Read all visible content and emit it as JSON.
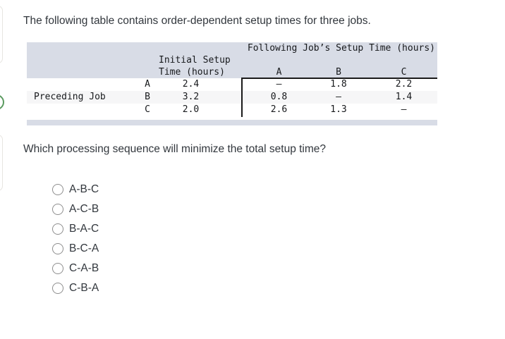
{
  "page": {
    "intro": "The following table contains order-dependent setup times for three jobs.",
    "question": "Which processing sequence will minimize the total setup time?"
  },
  "table": {
    "spanning_header": "Following Job’s Setup Time (hours)",
    "initial_col_header": [
      "Initial Setup",
      "Time (hours)"
    ],
    "following_cols": [
      "A",
      "B",
      "C"
    ],
    "row_group_label": "Preceding Job",
    "rows": [
      {
        "job": "A",
        "initial": "2.4",
        "A": "–",
        "B": "1.8",
        "C": "2.2"
      },
      {
        "job": "B",
        "initial": "3.2",
        "A": "0.8",
        "B": "–",
        "C": "1.4"
      },
      {
        "job": "C",
        "initial": "2.0",
        "A": "2.6",
        "B": "1.3",
        "C": "–"
      }
    ]
  },
  "options": [
    {
      "label": "A-B-C",
      "selected": false
    },
    {
      "label": "A-C-B",
      "selected": false
    },
    {
      "label": "B-A-C",
      "selected": false
    },
    {
      "label": "B-C-A",
      "selected": false
    },
    {
      "label": "C-A-B",
      "selected": false
    },
    {
      "label": "C-B-A",
      "selected": false
    }
  ],
  "colors": {
    "table_header_bg": "#d8dce6",
    "row_stripe_bg": "#f6f6f7",
    "table_rule": "#1a1a1a",
    "text": "#32373d",
    "radio_border": "#8e8e8e"
  }
}
